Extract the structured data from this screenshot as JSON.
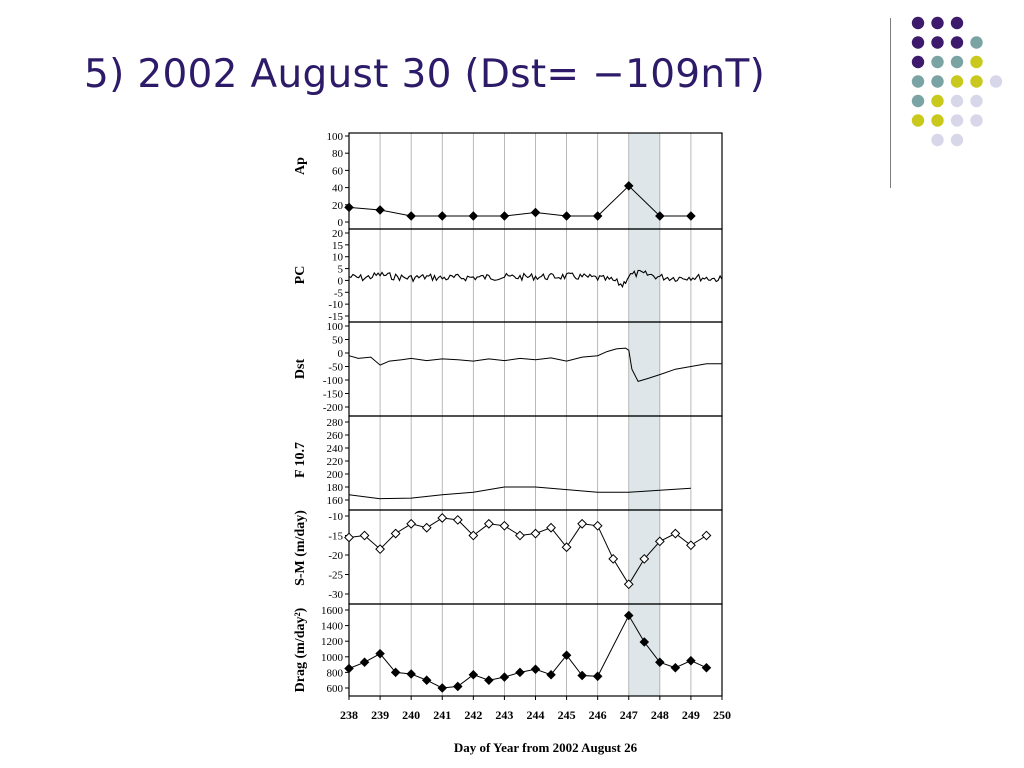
{
  "slide": {
    "title": "5) 2002 August 30 (Dst= −109nT)"
  },
  "palette": {
    "title": "#2d1b69",
    "dot_dark_purple": "#3d1a6b",
    "dot_teal": "#7aa3a3",
    "dot_olive": "#c9c81c",
    "dot_lavender": "#d8d7ea",
    "highlight_band": "#dfe6ea",
    "gridline": "#a8a8a8"
  },
  "chart_data": {
    "type": "line",
    "xlabel": "Day of Year from 2002 August 26",
    "x_ticks": [
      "238",
      "239",
      "240",
      "241",
      "242",
      "243",
      "244",
      "245",
      "246",
      "247",
      "248",
      "249",
      "250"
    ],
    "xlim": [
      238,
      250
    ],
    "grid_x": true,
    "highlight_x": [
      247,
      248
    ],
    "panels": [
      {
        "id": "ap",
        "ylabel": "Ap",
        "ylim": [
          0,
          100
        ],
        "yticks": [
          "100",
          "80",
          "60",
          "40",
          "20",
          "0"
        ],
        "series_type": "line-markers",
        "marker": "filled-diamond",
        "x": [
          238,
          239,
          240,
          241,
          242,
          243,
          244,
          245,
          246,
          247,
          248,
          249
        ],
        "y": [
          17,
          14,
          7,
          7,
          7,
          7,
          11,
          7,
          7,
          42,
          7,
          7
        ]
      },
      {
        "id": "pc",
        "ylabel": "PC",
        "ylim": [
          -15,
          20
        ],
        "yticks": [
          "20",
          "15",
          "10",
          "5",
          "0",
          "-5",
          "-10",
          "-15"
        ],
        "series_type": "noisy-line",
        "x": [
          238,
          238.5,
          239,
          239.5,
          240,
          240.5,
          241,
          241.5,
          242,
          242.5,
          243,
          243.5,
          244,
          244.5,
          245,
          245.5,
          246,
          246.5,
          246.8,
          247,
          247.3,
          247.6,
          248,
          248.5,
          249,
          249.5,
          250
        ],
        "y": [
          1.5,
          1,
          2.5,
          1.5,
          1,
          1.5,
          1,
          1.2,
          1.3,
          1.4,
          1.5,
          1.4,
          1.6,
          1.5,
          1.8,
          1.5,
          1,
          0,
          -2,
          2,
          3,
          2.5,
          1.5,
          1,
          1.5,
          1,
          0.5
        ]
      },
      {
        "id": "dst",
        "ylabel": "Dst",
        "ylim": [
          -200,
          100
        ],
        "yticks": [
          "100",
          "50",
          "0",
          "-50",
          "-100",
          "-150",
          "-200"
        ],
        "series_type": "line",
        "x": [
          238,
          238.3,
          238.7,
          239,
          239.3,
          239.7,
          240,
          240.5,
          241,
          241.5,
          242,
          242.5,
          243,
          243.5,
          244,
          244.5,
          245,
          245.5,
          246,
          246.3,
          246.6,
          246.9,
          247,
          247.1,
          247.3,
          247.6,
          248,
          248.5,
          249,
          249.5,
          250
        ],
        "y": [
          -10,
          -20,
          -15,
          -45,
          -30,
          -25,
          -20,
          -28,
          -22,
          -25,
          -30,
          -22,
          -28,
          -20,
          -25,
          -18,
          -30,
          -15,
          -10,
          5,
          15,
          18,
          10,
          -60,
          -105,
          -95,
          -80,
          -60,
          -50,
          -40,
          -40
        ]
      },
      {
        "id": "f107",
        "ylabel": "F 10.7",
        "ylim": [
          160,
          280
        ],
        "yticks": [
          "280",
          "260",
          "240",
          "220",
          "200",
          "180",
          "160"
        ],
        "series_type": "line",
        "x": [
          238,
          239,
          240,
          241,
          242,
          243,
          244,
          245,
          246,
          247,
          248,
          249
        ],
        "y": [
          168,
          162,
          163,
          168,
          172,
          180,
          180,
          176,
          172,
          172,
          175,
          178
        ]
      },
      {
        "id": "drag-sm",
        "ylabel": "S-M (m/day)",
        "ylim": [
          -33,
          -9
        ],
        "yticks": [
          "-10",
          "-15",
          "-20",
          "-25",
          "-30"
        ],
        "series_type": "line-markers",
        "marker": "open-diamond",
        "x": [
          238,
          238.5,
          239,
          239.5,
          240,
          240.5,
          241,
          241.5,
          242,
          242.5,
          243,
          243.5,
          244,
          244.5,
          245,
          245.5,
          246,
          246.5,
          247,
          247.5,
          248,
          248.5,
          249,
          249.5
        ],
        "y": [
          -15.5,
          -15,
          -18.5,
          -14.5,
          -12,
          -13,
          -10.5,
          -11,
          -15,
          -12,
          -12.5,
          -15,
          -14.5,
          -13,
          -18,
          -12,
          -12.5,
          -21,
          -27.5,
          -21,
          -16.5,
          -14.5,
          -17.5,
          -15
        ]
      },
      {
        "id": "drag",
        "ylabel": "Drag (m/day²)",
        "ylim": [
          500,
          1650
        ],
        "yticks": [
          "1600",
          "1400",
          "1200",
          "1000",
          "800",
          "600"
        ],
        "series_type": "line-markers",
        "marker": "filled-diamond",
        "x": [
          238,
          238.5,
          239,
          239.5,
          240,
          240.5,
          241,
          241.5,
          242,
          242.5,
          243,
          243.5,
          244,
          244.5,
          245,
          245.5,
          246,
          247,
          247.5,
          248,
          248.5,
          249,
          249.5
        ],
        "y": [
          850,
          930,
          1040,
          800,
          780,
          700,
          600,
          620,
          770,
          700,
          740,
          800,
          840,
          770,
          1020,
          760,
          750,
          1530,
          1190,
          930,
          860,
          950,
          860
        ]
      }
    ]
  }
}
